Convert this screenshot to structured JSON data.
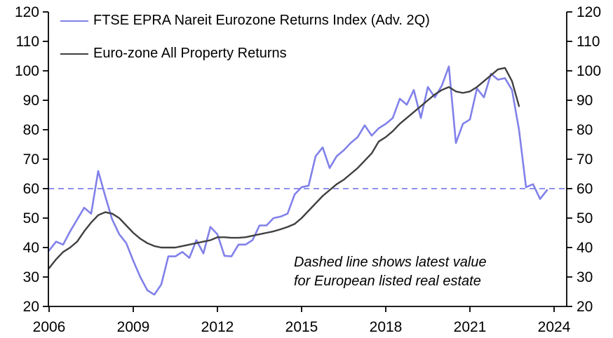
{
  "chart_data": {
    "type": "line",
    "title": "",
    "xlabel": "",
    "ylabel": "",
    "background_color": "#ffffff",
    "axis_color": "#000000",
    "grid": false,
    "x_axis": {
      "tick_labels": [
        "2006",
        "2009",
        "2012",
        "2015",
        "2018",
        "2021",
        "2024"
      ],
      "tick_years": [
        2006,
        2009,
        2012,
        2015,
        2018,
        2021,
        2024
      ],
      "range": [
        2006,
        2024.45
      ]
    },
    "y_axis": {
      "ticks": [
        20,
        30,
        40,
        50,
        60,
        70,
        80,
        90,
        100,
        110,
        120
      ],
      "min": 20,
      "max": 120,
      "mirrored_right_axis": true
    },
    "series": [
      {
        "name": "FTSE EPRA Nareit Eurozone Returns Index (Adv. 2Q)",
        "color": "#8181ea",
        "line_width": 2.6,
        "start": 2006.0,
        "step": 0.25,
        "values": [
          39,
          42,
          41,
          45.5,
          49.5,
          53.5,
          51.5,
          66,
          57.5,
          49.5,
          44.5,
          41.5,
          35.5,
          30,
          25.5,
          24,
          27.5,
          37,
          37,
          38.5,
          36.5,
          42.5,
          38,
          47,
          44.5,
          37.2,
          37,
          41,
          41,
          42.5,
          47.5,
          47.5,
          50,
          50.5,
          51.5,
          58,
          60.5,
          61,
          71,
          74,
          67,
          71,
          73,
          75.5,
          77.5,
          81.5,
          78,
          80.5,
          82,
          84,
          90.5,
          88.5,
          93.5,
          84,
          94.5,
          91,
          95,
          101.5,
          75.5,
          82,
          83.5,
          94,
          91,
          99,
          97,
          97.5,
          93.5,
          80,
          60.5,
          61.5,
          56.5,
          59.5
        ]
      },
      {
        "name": "Euro-zone All Property Returns",
        "color": "#404040",
        "line_width": 2.4,
        "start": 2006.0,
        "step": 0.25,
        "values": [
          33,
          36,
          38.5,
          40,
          42,
          45.5,
          48.5,
          51,
          52,
          51.5,
          50,
          47.5,
          45,
          43,
          41.5,
          40.5,
          40,
          40,
          40,
          40.5,
          41,
          41.5,
          42,
          42.5,
          43.5,
          43.5,
          43.3,
          43.3,
          43.5,
          44,
          44.5,
          45,
          45.5,
          46.2,
          47,
          48,
          50,
          52.5,
          55,
          57.5,
          59.5,
          61.5,
          63,
          65,
          67,
          69.5,
          72,
          76,
          77.5,
          79.5,
          82,
          84,
          86,
          88,
          90,
          92,
          93.5,
          94.5,
          93,
          92.5,
          93,
          94.5,
          96.5,
          98.5,
          100.5,
          101,
          96.5,
          88
        ]
      }
    ],
    "reference_line": {
      "value": 60,
      "style": "dashed",
      "color": "#8181ea",
      "meaning": "latest value for European listed real estate"
    },
    "annotation": {
      "line1": "Dashed line shows latest value",
      "line2": "for European listed real estate"
    },
    "legend_position": "top-left-inside"
  }
}
